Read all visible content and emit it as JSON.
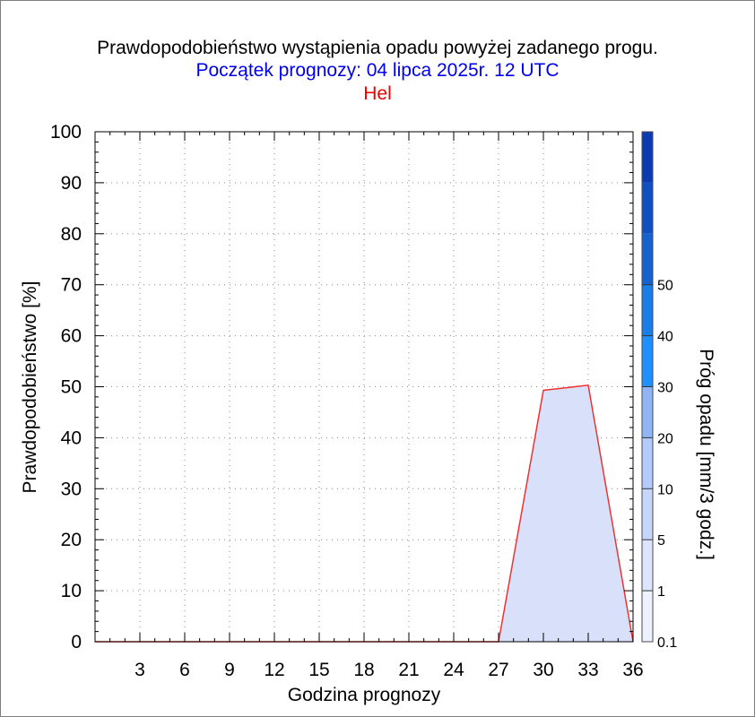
{
  "colors": {
    "title": "#000000",
    "subtitle": "#0000ee",
    "station": "#ee0000",
    "line": "#ee3333",
    "fill": "#d8e0fa"
  },
  "chart_data": {
    "type": "area",
    "title": "Prawdopodobieństwo wystąpienia opadu powyżej zadanego progu.",
    "subtitle": "Początek prognozy: 04 lipca 2025r. 12 UTC",
    "station": "Hel",
    "xlabel": "Godzina prognozy",
    "ylabel": "Prawdopodobieństwo [%]",
    "xlim": [
      0,
      36
    ],
    "ylim": [
      0,
      100
    ],
    "x_ticks": [
      "3",
      "6",
      "9",
      "12",
      "15",
      "18",
      "21",
      "24",
      "27",
      "30",
      "33",
      "36"
    ],
    "y_ticks": [
      "0",
      "10",
      "20",
      "30",
      "40",
      "50",
      "60",
      "70",
      "80",
      "90",
      "100"
    ],
    "grid": true,
    "series": [
      {
        "x": [
          0,
          3,
          6,
          9,
          12,
          15,
          18,
          21,
          24,
          27,
          30,
          33,
          36
        ],
        "values": [
          0,
          0,
          0,
          0,
          0,
          0,
          0,
          0,
          0,
          0,
          49.3,
          50.3,
          0
        ]
      }
    ],
    "colorbar": {
      "label": "Próg opadu [mm/3 godz.]",
      "ticks": [
        "0.1",
        "1",
        "5",
        "10",
        "20",
        "30",
        "40",
        "50"
      ],
      "colors": [
        "#eef1ff",
        "#dde5fc",
        "#c6d6fa",
        "#b3cafa",
        "#8fb5f5",
        "#1e90ff",
        "#1a7ee8",
        "#1563d0",
        "#0f4fbf",
        "#0a3bb0"
      ]
    }
  }
}
